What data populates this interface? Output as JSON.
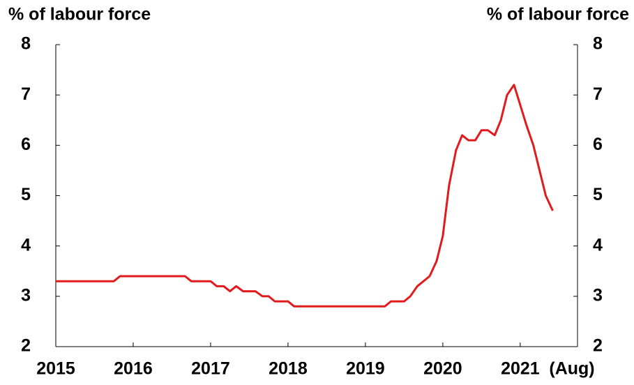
{
  "chart_data": {
    "type": "line",
    "y_label": "% of labour force",
    "y2_label": "% of labour force",
    "annotation": "(Aug)",
    "x": [
      2015,
      2015.08,
      2015.17,
      2015.25,
      2015.33,
      2015.42,
      2015.5,
      2015.58,
      2015.67,
      2015.75,
      2015.83,
      2015.92,
      2016,
      2016.08,
      2016.17,
      2016.25,
      2016.33,
      2016.42,
      2016.5,
      2016.58,
      2016.67,
      2016.75,
      2016.83,
      2016.92,
      2017,
      2017.08,
      2017.17,
      2017.25,
      2017.33,
      2017.42,
      2017.5,
      2017.58,
      2017.67,
      2017.75,
      2017.83,
      2017.92,
      2018,
      2018.08,
      2018.17,
      2018.25,
      2018.33,
      2018.42,
      2018.5,
      2018.58,
      2018.67,
      2018.75,
      2018.83,
      2018.92,
      2019,
      2019.08,
      2019.17,
      2019.25,
      2019.33,
      2019.42,
      2019.5,
      2019.58,
      2019.67,
      2019.75,
      2019.83,
      2019.92,
      2020,
      2020.08,
      2020.17,
      2020.25,
      2020.33,
      2020.42,
      2020.5,
      2020.58,
      2020.67,
      2020.75,
      2020.83,
      2020.92,
      2021,
      2021.08,
      2021.17,
      2021.25,
      2021.33,
      2021.42
    ],
    "series": [
      {
        "color": "#e31a1c",
        "values": [
          3.3,
          3.3,
          3.3,
          3.3,
          3.3,
          3.3,
          3.3,
          3.3,
          3.3,
          3.3,
          3.4,
          3.4,
          3.4,
          3.4,
          3.4,
          3.4,
          3.4,
          3.4,
          3.4,
          3.4,
          3.4,
          3.3,
          3.3,
          3.3,
          3.3,
          3.2,
          3.2,
          3.1,
          3.2,
          3.1,
          3.1,
          3.1,
          3.0,
          3.0,
          2.9,
          2.9,
          2.9,
          2.8,
          2.8,
          2.8,
          2.8,
          2.8,
          2.8,
          2.8,
          2.8,
          2.8,
          2.8,
          2.8,
          2.8,
          2.8,
          2.8,
          2.8,
          2.9,
          2.9,
          2.9,
          3.0,
          3.2,
          3.3,
          3.4,
          3.7,
          4.2,
          5.2,
          5.9,
          6.2,
          6.1,
          6.1,
          6.3,
          6.3,
          6.2,
          6.5,
          7.0,
          7.2,
          6.8,
          6.4,
          6.0,
          5.5,
          5.0,
          4.7
        ]
      }
    ],
    "xlim": [
      2015,
      2021.74
    ],
    "xticks": [
      2015,
      2016,
      2017,
      2018,
      2019,
      2020,
      2021
    ],
    "ylim": [
      2,
      8
    ],
    "yticks": [
      2,
      3,
      4,
      5,
      6,
      7,
      8
    ],
    "y2lim": [
      2,
      8
    ],
    "y2ticks": [
      2,
      3,
      4,
      5,
      6,
      7,
      8
    ]
  }
}
